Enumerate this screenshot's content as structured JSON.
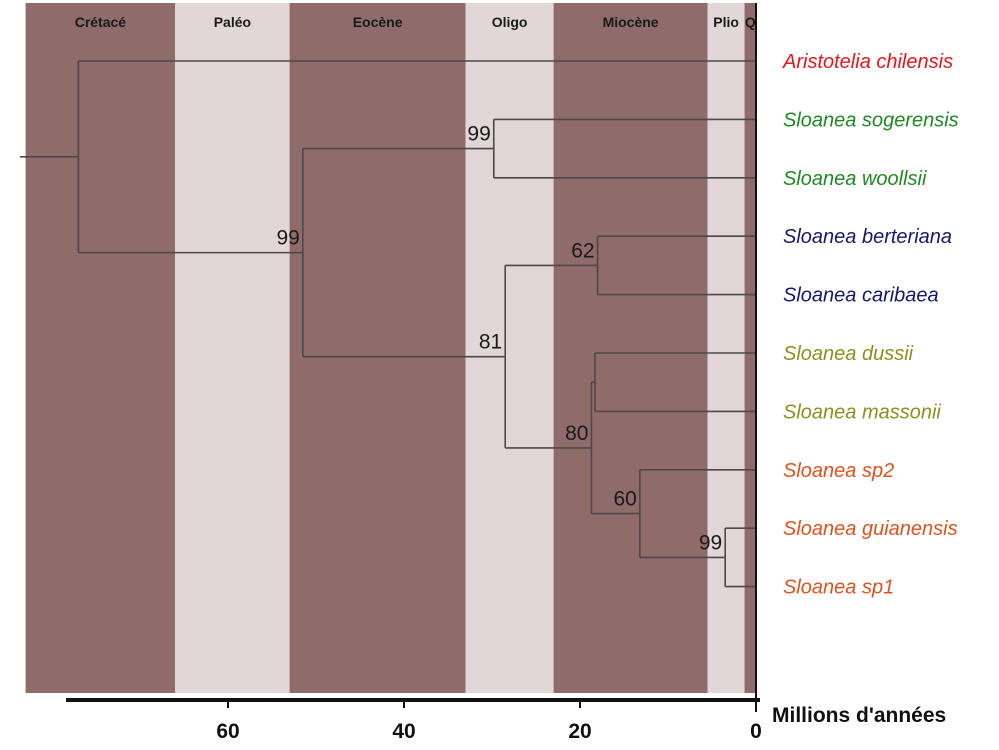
{
  "epochs": [
    {
      "name": "Crétacé",
      "start": 83,
      "end": 66,
      "color": "#8f6b69"
    },
    {
      "name": "Paléo",
      "start": 66,
      "end": 53,
      "color": "#e2d7d8"
    },
    {
      "name": "Eocène",
      "start": 53,
      "end": 33,
      "color": "#8f6b69"
    },
    {
      "name": "Oligo",
      "start": 33,
      "end": 23,
      "color": "#e2d7d8"
    },
    {
      "name": "Miocène",
      "start": 23,
      "end": 5.5,
      "color": "#8f6b69"
    },
    {
      "name": "Plio",
      "start": 5.5,
      "end": 1.3,
      "color": "#e2d7d8"
    },
    {
      "name": "Q",
      "start": 1.3,
      "end": 0,
      "color": "#8f6b69"
    }
  ],
  "taxa": [
    {
      "name": "Aristotelia chilensis",
      "color": "#e8141b"
    },
    {
      "name": "Sloanea sogerensis",
      "color": "#1e8a23"
    },
    {
      "name": "Sloanea woollsii",
      "color": "#1e8a23"
    },
    {
      "name": "Sloanea berteriana",
      "color": "#16186e"
    },
    {
      "name": "Sloanea caribaea",
      "color": "#16186e"
    },
    {
      "name": "Sloanea dussii",
      "color": "#8f8f1e"
    },
    {
      "name": "Sloanea massonii",
      "color": "#8f8f1e"
    },
    {
      "name": "Sloanea sp2",
      "color": "#e0521e"
    },
    {
      "name": "Sloanea guianensis",
      "color": "#e0521e"
    },
    {
      "name": "Sloanea sp1",
      "color": "#e0521e"
    }
  ],
  "tree": {
    "age": 77,
    "children": [
      {
        "taxon": 0
      },
      {
        "age": 51.5,
        "support": "99",
        "children": [
          {
            "age": 29.8,
            "support": "99",
            "children": [
              {
                "taxon": 1
              },
              {
                "taxon": 2
              }
            ]
          },
          {
            "age": 28.5,
            "support": "81",
            "children": [
              {
                "age": 18,
                "support": "62",
                "children": [
                  {
                    "taxon": 3
                  },
                  {
                    "taxon": 4
                  }
                ]
              },
              {
                "age": 18.7,
                "support": "80",
                "children": [
                  {
                    "age": 18.3,
                    "children": [
                      {
                        "taxon": 5
                      },
                      {
                        "taxon": 6
                      }
                    ]
                  },
                  {
                    "age": 13.2,
                    "support": "60",
                    "children": [
                      {
                        "taxon": 7
                      },
                      {
                        "age": 3.5,
                        "support": "99",
                        "children": [
                          {
                            "taxon": 8
                          },
                          {
                            "taxon": 9
                          }
                        ]
                      }
                    ]
                  }
                ]
              }
            ]
          }
        ]
      }
    ]
  },
  "axis": {
    "ticks": [
      60,
      40,
      20,
      0
    ],
    "title": "Millions d'années"
  },
  "colors": {
    "branch": "#4a4a4a",
    "axis": "#111111"
  }
}
